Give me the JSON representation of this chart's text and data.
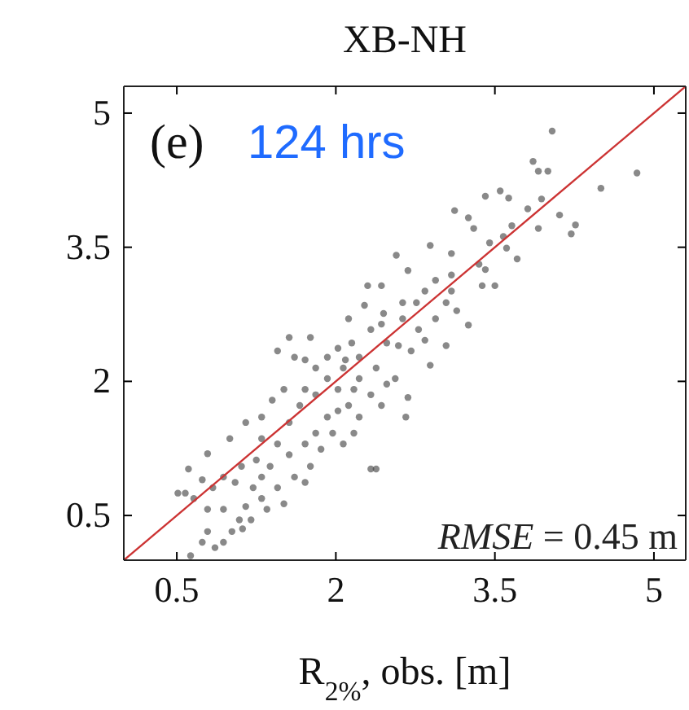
{
  "chart_data": {
    "type": "scatter",
    "title": "XB-NH",
    "xlabel": "R$_{2%}$, obs. [m]",
    "annotations": [
      "(e)",
      "124 hrs",
      "RMSE = 0.45 m"
    ],
    "xlim": [
      0,
      5.3
    ],
    "ylim": [
      0,
      5.3
    ],
    "xticks": [
      0.5,
      2,
      3.5,
      5
    ],
    "yticks": [
      0.5,
      2,
      3.5,
      5
    ],
    "series": [
      {
        "marker": "circle",
        "color": "#3a3a3a",
        "x": [
          4.04,
          4.84,
          4.5,
          3.86,
          3.91,
          4.0,
          3.81,
          3.63,
          3.41,
          3.55,
          3.94,
          4.11,
          4.26,
          4.22,
          3.91,
          3.71,
          3.61,
          3.45,
          3.3,
          3.12,
          3.25,
          3.38,
          3.41,
          3.09,
          2.89,
          2.68,
          2.57,
          2.84,
          3.04,
          3.25,
          2.94,
          2.76,
          2.63,
          2.45,
          2.3,
          2.43,
          2.27,
          2.12,
          2.33,
          2.48,
          2.71,
          2.84,
          2.89,
          2.68,
          2.66,
          2.56,
          2.38,
          2.22,
          2.02,
          1.92,
          2.07,
          1.81,
          1.76,
          1.56,
          1.45,
          1.61,
          1.71,
          1.51,
          1.66,
          1.4,
          1.3,
          1.15,
          1.3,
          1.25,
          1.0,
          1.11,
          0.79,
          0.61,
          0.74,
          0.58,
          0.51,
          0.66,
          0.84,
          0.94,
          1.09,
          1.12,
          0.74,
          0.63,
          0.79,
          0.94,
          1.3,
          1.45,
          1.51,
          1.61,
          1.71,
          1.76,
          1.86,
          1.97,
          2.07,
          2.17,
          2.22,
          2.12,
          2.33,
          2.38,
          1.92,
          1.81,
          1.71,
          1.56,
          1.45,
          1.38,
          1.22,
          1.3,
          1.56,
          2.02,
          2.17,
          2.22,
          2.33,
          2.43,
          2.48,
          2.09,
          1.92,
          1.71,
          1.81,
          2.02,
          1.05,
          0.94,
          1.15,
          1.35,
          1.2,
          1.02,
          0.86,
          0.79,
          2.63,
          2.78,
          3.09,
          3.14,
          2.94,
          3.35,
          3.5,
          3.66,
          3.58,
          3.09,
          2.59,
          3.04,
          2.15,
          2.43
        ],
        "values": [
          4.8,
          4.33,
          4.16,
          4.46,
          4.35,
          4.35,
          3.93,
          4.05,
          4.07,
          4.13,
          4.04,
          3.86,
          3.75,
          3.65,
          3.71,
          3.37,
          3.49,
          3.55,
          3.71,
          3.91,
          3.83,
          3.07,
          3.25,
          3.43,
          3.52,
          3.24,
          3.41,
          3.01,
          2.88,
          2.63,
          2.7,
          2.88,
          2.7,
          2.76,
          3.07,
          3.07,
          2.85,
          2.7,
          2.58,
          2.43,
          2.34,
          2.46,
          2.18,
          1.82,
          1.6,
          2.03,
          2.15,
          2.27,
          2.37,
          2.03,
          2.15,
          2.15,
          2.49,
          2.49,
          2.34,
          2.27,
          1.91,
          1.91,
          1.73,
          1.79,
          1.6,
          1.54,
          1.36,
          1.12,
          1.36,
          1.05,
          1.19,
          1.02,
          0.9,
          0.75,
          0.75,
          0.69,
          0.81,
          0.57,
          0.45,
          0.35,
          0.2,
          0.05,
          0.32,
          0.2,
          0.69,
          0.81,
          0.63,
          0.93,
          0.87,
          1.05,
          1.24,
          1.42,
          1.3,
          1.42,
          1.6,
          1.73,
          1.02,
          1.02,
          1.6,
          1.42,
          1.3,
          1.18,
          1.3,
          1.05,
          0.81,
          0.93,
          1.54,
          1.91,
          1.91,
          2.03,
          1.85,
          1.73,
          1.97,
          2.24,
          2.27,
          2.24,
          1.85,
          1.67,
          0.87,
          0.93,
          0.6,
          0.57,
          0.45,
          0.32,
          0.14,
          0.57,
          2.88,
          2.58,
          3.01,
          2.79,
          3.13,
          3.31,
          3.07,
          3.74,
          3.62,
          3.19,
          2.4,
          2.4,
          2.43,
          2.64
        ]
      },
      {
        "type": "line",
        "marker": "none",
        "color": "#cc3333",
        "x": [
          0,
          5.3
        ],
        "values": [
          0,
          5.3
        ]
      }
    ]
  }
}
